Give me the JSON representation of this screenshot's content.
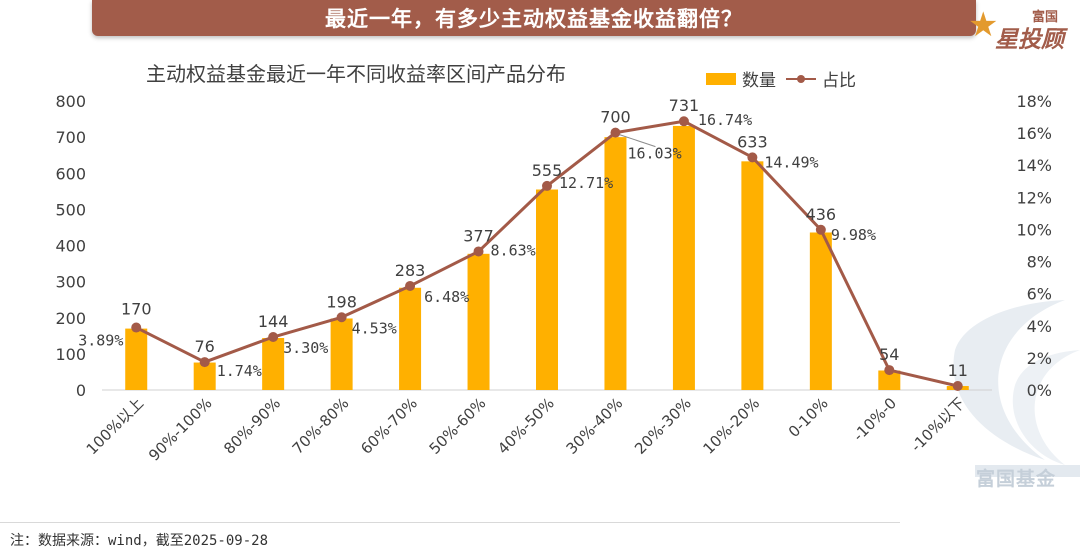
{
  "banner": {
    "title": "最近一年，有多少主动权益基金收益翻倍？"
  },
  "logo": {
    "top": "富国",
    "main": "星投顾",
    "watermark": "富国基金"
  },
  "footnote": "注：数据来源：wind，截至2025-09-28",
  "colors": {
    "bar": "#ffb000",
    "line": "#a35a48",
    "banner": "#a25c4a"
  },
  "chart_data": {
    "type": "bar",
    "title": "主动权益基金最近一年不同收益率区间产品分布",
    "legend": {
      "bar": "数量",
      "line": "占比",
      "position": "top-right"
    },
    "categories": [
      "100%以上",
      "90%-100%",
      "80%-90%",
      "70%-80%",
      "60%-70%",
      "50%-60%",
      "40%-50%",
      "30%-40%",
      "20%-30%",
      "10%-20%",
      "0-10%",
      "-10%-0",
      "-10%以下"
    ],
    "series": [
      {
        "name": "数量",
        "type": "bar",
        "axis": "left",
        "values": [
          170,
          76,
          144,
          198,
          283,
          377,
          555,
          700,
          731,
          633,
          436,
          54,
          11
        ]
      },
      {
        "name": "占比",
        "type": "line",
        "axis": "right",
        "values": [
          3.89,
          1.74,
          3.3,
          4.53,
          6.48,
          8.63,
          12.71,
          16.03,
          16.74,
          14.49,
          9.98,
          1.24,
          0.25
        ],
        "labels": [
          "3.89%",
          "1.74%",
          "3.30%",
          "4.53%",
          "6.48%",
          "8.63%",
          "12.71%",
          "16.03%",
          "16.74%",
          "14.49%",
          "9.98%",
          "",
          ""
        ]
      }
    ],
    "bar_labels": [
      "170",
      "76",
      "144",
      "198",
      "283",
      "377",
      "555",
      "700",
      "731",
      "633",
      "436",
      "54",
      "11"
    ],
    "left_axis": {
      "ylim": [
        0,
        800
      ],
      "ticks": [
        "0",
        "100",
        "200",
        "300",
        "400",
        "500",
        "600",
        "700",
        "800"
      ]
    },
    "right_axis": {
      "ylim": [
        0,
        18
      ],
      "ticks": [
        "0%",
        "2%",
        "4%",
        "6%",
        "8%",
        "10%",
        "12%",
        "14%",
        "16%",
        "18%"
      ]
    },
    "grid": false
  }
}
